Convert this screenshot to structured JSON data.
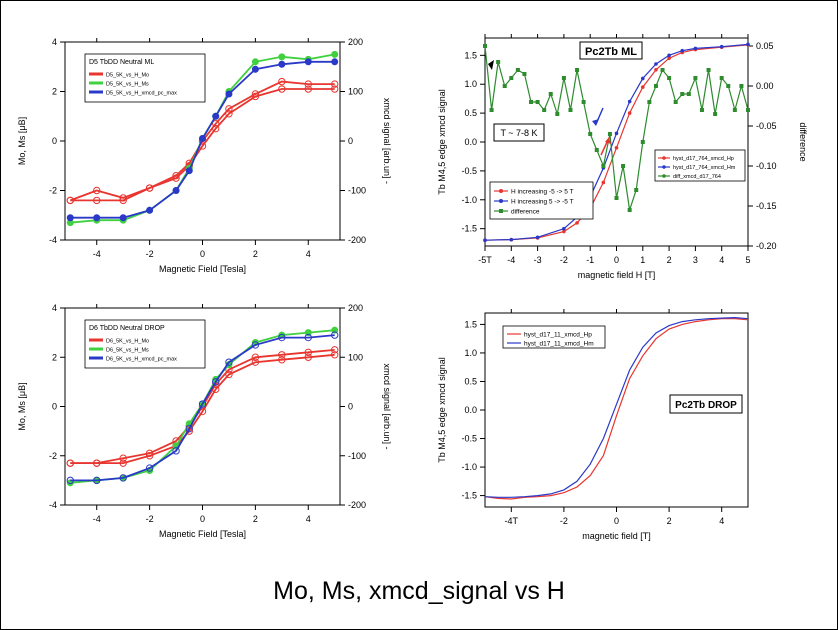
{
  "caption": "Mo, Ms, xmcd_signal vs H",
  "colors": {
    "red": "#e8352f",
    "green": "#3fd13f",
    "blue": "#2a39c8",
    "dkgreen": "#2e8b2e",
    "lightred": "#e26060"
  },
  "chart_data": [
    {
      "type": "line",
      "xlabel": "Magnetic Field [Tesla]",
      "ylabel": "Mo, Ms [μB]",
      "y2label": "xmcd signal [arb.un] -",
      "xlim": [
        -5.2,
        5.2
      ],
      "ylim": [
        -4,
        4
      ],
      "y2lim": [
        -200,
        200
      ],
      "xticks": [
        -4,
        -2,
        0,
        2,
        4
      ],
      "yticks": [
        -4,
        -2,
        0,
        2,
        4
      ],
      "y2ticks": [
        -200,
        -100,
        0,
        100,
        200
      ],
      "legend": {
        "title": "D5 TbDD Neutral ML",
        "entries": [
          "D5_5K_vs_H_Mo",
          "D5_5K_vs_H_Ms",
          "D5_5K_vs_H_xmcd_pc_max"
        ]
      },
      "series": [
        {
          "name": "D5_5K_vs_H_Mo",
          "color": "red",
          "x": [
            -5,
            -4,
            -3,
            -2,
            -1,
            -0.5,
            0,
            0.5,
            1,
            2,
            3,
            4,
            5
          ],
          "y": [
            -2.4,
            -2.0,
            -2.3,
            -1.9,
            -1.4,
            -0.9,
            0.0,
            0.7,
            1.3,
            1.9,
            2.4,
            2.3,
            2.3
          ],
          "markers": "open"
        },
        {
          "name": "D5_5K_vs_H_Mo",
          "color": "red",
          "x": [
            -5,
            -4,
            -3,
            -2,
            -1,
            -0.5,
            0,
            0.5,
            1,
            2,
            3,
            4,
            5
          ],
          "y": [
            -2.4,
            -2.4,
            -2.4,
            -1.9,
            -1.5,
            -1.0,
            -0.2,
            0.5,
            1.1,
            1.8,
            2.1,
            2.1,
            2.1
          ],
          "markers": "open"
        },
        {
          "name": "D5_5K_vs_H_Ms",
          "color": "green",
          "x": [
            -5,
            -4,
            -3,
            -2,
            -1,
            -0.5,
            0,
            0.5,
            1,
            2,
            3,
            4,
            5
          ],
          "y": [
            -3.3,
            -3.2,
            -3.2,
            -2.8,
            -2.0,
            -1.1,
            0.1,
            1.0,
            2.0,
            3.2,
            3.4,
            3.3,
            3.5
          ],
          "markers": "filled"
        },
        {
          "name": "D5_5K_vs_H_xmcd_pc_max",
          "color": "blue",
          "x": [
            -5,
            -4,
            -3,
            -2,
            -1,
            -0.5,
            0,
            0.5,
            1,
            2,
            3,
            4,
            5
          ],
          "y": [
            -3.1,
            -3.1,
            -3.1,
            -2.8,
            -2.0,
            -1.2,
            0.1,
            1.0,
            1.9,
            2.9,
            3.1,
            3.2,
            3.2
          ],
          "markers": "filled"
        }
      ]
    },
    {
      "type": "line",
      "title": "Pc2Tb ML",
      "annotation": "T ~ 7-8 K",
      "xlabel": "magnetic field H [T]",
      "ylabel": "Tb M4,5 edge xmcd signal",
      "y2label": "difference",
      "xlim": [
        -5,
        5
      ],
      "ylim": [
        -1.8,
        1.8
      ],
      "y2lim": [
        -0.2,
        0.06
      ],
      "xticklabels": [
        "-5T",
        "-4",
        "-3",
        "-2",
        "-1",
        "0",
        "1",
        "2",
        "3",
        "4",
        "5"
      ],
      "xticks": [
        -5,
        -4,
        -3,
        -2,
        -1,
        0,
        1,
        2,
        3,
        4,
        5
      ],
      "yticks": [
        -1.5,
        -1.0,
        -0.5,
        0.0,
        0.5,
        1.0,
        1.5
      ],
      "y2ticks": [
        -0.2,
        -0.15,
        -0.1,
        -0.05,
        0.0,
        0.05
      ],
      "legend_left": [
        "H increasing -5 -> 5 T",
        "H increasing 5 -> -5 T",
        "difference"
      ],
      "legend_right": [
        "hyst_d17_764_xmcd_Hp",
        "hyst_d17_764_xmcd_Hm",
        "diff_xmcd_d17_764"
      ],
      "series": [
        {
          "name": "H increasing -5 -> 5 T",
          "color": "red",
          "x": [
            -5,
            -4,
            -3,
            -2,
            -1.5,
            -1,
            -0.5,
            0,
            0.5,
            1,
            1.5,
            2,
            2.5,
            3,
            4,
            5
          ],
          "y": [
            -1.7,
            -1.69,
            -1.66,
            -1.55,
            -1.4,
            -1.15,
            -0.7,
            -0.1,
            0.5,
            0.95,
            1.25,
            1.45,
            1.55,
            1.6,
            1.64,
            1.68
          ]
        },
        {
          "name": "H increasing 5 -> -5 T",
          "color": "blue",
          "x": [
            -5,
            -4,
            -3,
            -2,
            -1.5,
            -1,
            -0.5,
            0,
            0.5,
            1,
            1.5,
            2,
            2.5,
            3,
            4,
            5
          ],
          "y": [
            -1.7,
            -1.69,
            -1.65,
            -1.5,
            -1.3,
            -0.95,
            -0.45,
            0.15,
            0.7,
            1.1,
            1.35,
            1.5,
            1.58,
            1.62,
            1.65,
            1.69
          ]
        },
        {
          "name": "difference",
          "color": "dkgreen",
          "axis": "y2",
          "x": [
            -5,
            -4.75,
            -4.5,
            -4.25,
            -4,
            -3.75,
            -3.5,
            -3.25,
            -3,
            -2.75,
            -2.5,
            -2.25,
            -2,
            -1.75,
            -1.5,
            -1.25,
            -1,
            -0.75,
            -0.5,
            -0.25,
            0,
            0.25,
            0.5,
            0.75,
            1,
            1.25,
            1.5,
            1.75,
            2,
            2.25,
            2.5,
            2.75,
            3,
            3.25,
            3.5,
            3.75,
            4,
            4.25,
            4.5,
            4.75,
            5
          ],
          "y": [
            0.05,
            -0.03,
            0.03,
            0.0,
            0.01,
            0.02,
            0.015,
            -0.02,
            -0.02,
            -0.03,
            -0.01,
            -0.035,
            0.01,
            -0.03,
            0.02,
            -0.02,
            -0.06,
            -0.08,
            -0.1,
            -0.06,
            -0.14,
            -0.1,
            -0.155,
            -0.13,
            -0.07,
            -0.02,
            0.0,
            0.02,
            0.01,
            -0.02,
            -0.01,
            -0.01,
            0.01,
            -0.03,
            0.02,
            -0.035,
            0.01,
            0.0,
            -0.03,
            0.0,
            -0.03
          ]
        }
      ]
    },
    {
      "type": "line",
      "xlabel": "Magnetic Field [Tesla]",
      "ylabel": "Mo, Ms [μB]",
      "y2label": "xmcd signal [arb.un] -",
      "xlim": [
        -5.2,
        5.2
      ],
      "ylim": [
        -4,
        4
      ],
      "y2lim": [
        -200,
        200
      ],
      "xticks": [
        -4,
        -2,
        0,
        2,
        4
      ],
      "yticks": [
        -4,
        -2,
        0,
        2,
        4
      ],
      "y2ticks": [
        -200,
        -100,
        0,
        100,
        200
      ],
      "legend": {
        "title": "D6 TbDD Neutral DROP",
        "entries": [
          "D6_5K_vs_H_Mo",
          "D6_5K_vs_H_Ms",
          "D6_5K_vs_H_xmcd_pc_max"
        ]
      },
      "series": [
        {
          "name": "D6_5K_vs_H_Mo",
          "color": "red",
          "x": [
            -5,
            -4,
            -3,
            -2,
            -1,
            -0.5,
            0,
            0.5,
            1,
            2,
            3,
            4,
            5
          ],
          "y": [
            -2.3,
            -2.3,
            -2.1,
            -1.9,
            -1.4,
            -0.8,
            0.0,
            0.9,
            1.5,
            2.0,
            2.1,
            2.2,
            2.3
          ],
          "markers": "open"
        },
        {
          "name": "D6_5K_vs_H_Mo",
          "color": "red",
          "x": [
            -5,
            -4,
            -3,
            -2,
            -1,
            -0.5,
            0,
            0.5,
            1,
            2,
            3,
            4,
            5
          ],
          "y": [
            -2.3,
            -2.3,
            -2.3,
            -2.0,
            -1.6,
            -1.0,
            -0.2,
            0.7,
            1.3,
            1.8,
            1.9,
            2.0,
            2.1
          ],
          "markers": "open"
        },
        {
          "name": "D6_5K_vs_H_Ms",
          "color": "green",
          "x": [
            -5,
            -4,
            -3,
            -2,
            -1,
            -0.5,
            0,
            0.5,
            1,
            2,
            3,
            4,
            5
          ],
          "y": [
            -3.1,
            -3.0,
            -2.9,
            -2.6,
            -1.6,
            -0.7,
            0.1,
            1.1,
            1.7,
            2.6,
            2.9,
            3.0,
            3.1
          ],
          "markers": "filled"
        },
        {
          "name": "D6_5K_vs_H_xmcd_pc_max",
          "color": "blue",
          "x": [
            -5,
            -4,
            -3,
            -2,
            -1,
            -0.5,
            0,
            0.5,
            1,
            2,
            3,
            4,
            5
          ],
          "y": [
            -3.0,
            -3.0,
            -2.9,
            -2.5,
            -1.8,
            -0.9,
            0.1,
            1.0,
            1.8,
            2.5,
            2.8,
            2.8,
            2.9
          ],
          "markers": "open"
        }
      ]
    },
    {
      "type": "line",
      "title": "Pc2Tb DROP",
      "xlabel": "magnetic field [T]",
      "ylabel": "Tb M4,5 edge xmcd signal",
      "xlim": [
        -5,
        5
      ],
      "ylim": [
        -1.7,
        1.7
      ],
      "xticklabels": [
        "-4T",
        "-2",
        "0",
        "2",
        "4"
      ],
      "xticks": [
        -4,
        -2,
        0,
        2,
        4
      ],
      "yticks": [
        -1.5,
        -1.0,
        -0.5,
        0.0,
        0.5,
        1.0,
        1.5
      ],
      "legend": {
        "entries": [
          "hyst_d17_11_xmcd_Hp",
          "hyst_d17_11_xmcd_Hm"
        ]
      },
      "series": [
        {
          "name": "hyst_d17_11_xmcd_Hp",
          "color": "red",
          "x": [
            -5,
            -4.5,
            -4,
            -3.5,
            -3,
            -2.5,
            -2,
            -1.5,
            -1,
            -0.5,
            0,
            0.5,
            1,
            1.5,
            2,
            2.5,
            3,
            3.5,
            4,
            4.5,
            5
          ],
          "y": [
            -1.52,
            -1.55,
            -1.56,
            -1.53,
            -1.52,
            -1.5,
            -1.45,
            -1.35,
            -1.15,
            -0.8,
            -0.1,
            0.55,
            0.95,
            1.25,
            1.42,
            1.5,
            1.55,
            1.58,
            1.6,
            1.6,
            1.58
          ]
        },
        {
          "name": "hyst_d17_11_xmcd_Hm",
          "color": "blue",
          "x": [
            -5,
            -4.5,
            -4,
            -3.5,
            -3,
            -2.5,
            -2,
            -1.5,
            -1,
            -0.5,
            0,
            0.5,
            1,
            1.5,
            2,
            2.5,
            3,
            3.5,
            4,
            4.5,
            5
          ],
          "y": [
            -1.52,
            -1.53,
            -1.53,
            -1.52,
            -1.5,
            -1.47,
            -1.4,
            -1.25,
            -0.95,
            -0.5,
            0.1,
            0.7,
            1.1,
            1.35,
            1.48,
            1.55,
            1.58,
            1.6,
            1.61,
            1.62,
            1.6
          ]
        }
      ]
    }
  ]
}
